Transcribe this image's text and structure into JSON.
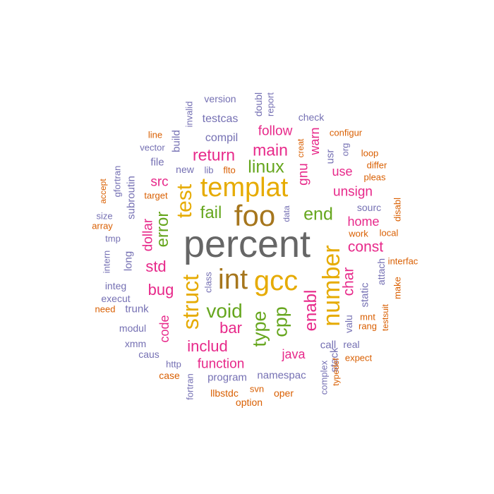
{
  "palette": {
    "gray": "#666666",
    "brown": "#A6761D",
    "gold": "#E6AB02",
    "green": "#66A61E",
    "magenta": "#E7298A",
    "purple": "#7570B3",
    "orange": "#D95F02"
  },
  "words": [
    {
      "text": "percent",
      "weight": 58,
      "color": "gray"
    },
    {
      "text": "foo",
      "weight": 44,
      "color": "brown"
    },
    {
      "text": "int",
      "weight": 42,
      "color": "brown"
    },
    {
      "text": "gcc",
      "weight": 42,
      "color": "gold"
    },
    {
      "text": "templat",
      "weight": 40,
      "color": "gold"
    },
    {
      "text": "number",
      "weight": 36,
      "color": "gold"
    },
    {
      "text": "struct",
      "weight": 34,
      "color": "gold"
    },
    {
      "text": "test",
      "weight": 32,
      "color": "gold"
    },
    {
      "text": "void",
      "weight": 29,
      "color": "green"
    },
    {
      "text": "linux",
      "weight": 26,
      "color": "green"
    },
    {
      "text": "end",
      "weight": 26,
      "color": "green"
    },
    {
      "text": "type",
      "weight": 28,
      "color": "green"
    },
    {
      "text": "cpp",
      "weight": 28,
      "color": "green"
    },
    {
      "text": "fail",
      "weight": 25,
      "color": "green"
    },
    {
      "text": "error",
      "weight": 25,
      "color": "green"
    },
    {
      "text": "main",
      "weight": 24,
      "color": "magenta"
    },
    {
      "text": "return",
      "weight": 24,
      "color": "magenta"
    },
    {
      "text": "includ",
      "weight": 23,
      "color": "magenta"
    },
    {
      "text": "bar",
      "weight": 23,
      "color": "magenta"
    },
    {
      "text": "enabl",
      "weight": 25,
      "color": "magenta"
    },
    {
      "text": "const",
      "weight": 22,
      "color": "magenta"
    },
    {
      "text": "std",
      "weight": 23,
      "color": "magenta"
    },
    {
      "text": "bug",
      "weight": 23,
      "color": "magenta"
    },
    {
      "text": "char",
      "weight": 22,
      "color": "magenta"
    },
    {
      "text": "gnu",
      "weight": 20,
      "color": "magenta"
    },
    {
      "text": "warn",
      "weight": 19,
      "color": "magenta"
    },
    {
      "text": "dollar",
      "weight": 20,
      "color": "magenta"
    },
    {
      "text": "code",
      "weight": 19,
      "color": "magenta"
    },
    {
      "text": "unsign",
      "weight": 20,
      "color": "magenta"
    },
    {
      "text": "src",
      "weight": 20,
      "color": "magenta"
    },
    {
      "text": "follow",
      "weight": 20,
      "color": "magenta"
    },
    {
      "text": "home",
      "weight": 19,
      "color": "magenta"
    },
    {
      "text": "function",
      "weight": 20,
      "color": "magenta"
    },
    {
      "text": "java",
      "weight": 19,
      "color": "magenta"
    },
    {
      "text": "use",
      "weight": 19,
      "color": "magenta"
    },
    {
      "text": "compil",
      "weight": 17,
      "color": "purple"
    },
    {
      "text": "testcas",
      "weight": 17,
      "color": "purple"
    },
    {
      "text": "build",
      "weight": 16,
      "color": "purple"
    },
    {
      "text": "long",
      "weight": 16,
      "color": "purple"
    },
    {
      "text": "usr",
      "weight": 16,
      "color": "purple"
    },
    {
      "text": "sourc",
      "weight": 15,
      "color": "purple"
    },
    {
      "text": "static",
      "weight": 16,
      "color": "purple"
    },
    {
      "text": "file",
      "weight": 16,
      "color": "purple"
    },
    {
      "text": "subroutin",
      "weight": 16,
      "color": "purple"
    },
    {
      "text": "trunk",
      "weight": 16,
      "color": "purple"
    },
    {
      "text": "call",
      "weight": 16,
      "color": "purple"
    },
    {
      "text": "stack",
      "weight": 16,
      "color": "purple"
    },
    {
      "text": "program",
      "weight": 16,
      "color": "purple"
    },
    {
      "text": "namespac",
      "weight": 16,
      "color": "purple"
    },
    {
      "text": "new",
      "weight": 14,
      "color": "purple"
    },
    {
      "text": "gfortran",
      "weight": 14,
      "color": "purple"
    },
    {
      "text": "attach",
      "weight": 14,
      "color": "purple"
    },
    {
      "text": "version",
      "weight": 14,
      "color": "purple"
    },
    {
      "text": "doubl",
      "weight": 14,
      "color": "purple"
    },
    {
      "text": "check",
      "weight": 14,
      "color": "purple"
    },
    {
      "text": "modul",
      "weight": 14,
      "color": "purple"
    },
    {
      "text": "execut",
      "weight": 14,
      "color": "purple"
    },
    {
      "text": "integ",
      "weight": 14,
      "color": "purple"
    },
    {
      "text": "caus",
      "weight": 14,
      "color": "purple"
    },
    {
      "text": "xmm",
      "weight": 14,
      "color": "purple"
    },
    {
      "text": "valu",
      "weight": 14,
      "color": "purple"
    },
    {
      "text": "real",
      "weight": 14,
      "color": "purple"
    },
    {
      "text": "vector",
      "weight": 13,
      "color": "purple"
    },
    {
      "text": "invalid",
      "weight": 13,
      "color": "purple"
    },
    {
      "text": "report",
      "weight": 13,
      "color": "purple"
    },
    {
      "text": "org",
      "weight": 13,
      "color": "purple"
    },
    {
      "text": "lib",
      "weight": 13,
      "color": "purple"
    },
    {
      "text": "size",
      "weight": 13,
      "color": "purple"
    },
    {
      "text": "tmp",
      "weight": 13,
      "color": "purple"
    },
    {
      "text": "intern",
      "weight": 13,
      "color": "purple"
    },
    {
      "text": "class",
      "weight": 13,
      "color": "purple"
    },
    {
      "text": "http",
      "weight": 13,
      "color": "purple"
    },
    {
      "text": "fortran",
      "weight": 13,
      "color": "purple"
    },
    {
      "text": "complex",
      "weight": 13,
      "color": "purple"
    },
    {
      "text": "data",
      "weight": 12,
      "color": "purple"
    },
    {
      "text": "line",
      "weight": 13,
      "color": "orange"
    },
    {
      "text": "configur",
      "weight": 13,
      "color": "orange"
    },
    {
      "text": "loop",
      "weight": 13,
      "color": "orange"
    },
    {
      "text": "differ",
      "weight": 13,
      "color": "orange"
    },
    {
      "text": "pleas",
      "weight": 13,
      "color": "orange"
    },
    {
      "text": "accept",
      "weight": 12,
      "color": "orange"
    },
    {
      "text": "target",
      "weight": 13,
      "color": "orange"
    },
    {
      "text": "flto",
      "weight": 13,
      "color": "orange"
    },
    {
      "text": "creat",
      "weight": 12,
      "color": "orange"
    },
    {
      "text": "array",
      "weight": 13,
      "color": "orange"
    },
    {
      "text": "disabl",
      "weight": 13,
      "color": "orange"
    },
    {
      "text": "work",
      "weight": 13,
      "color": "orange"
    },
    {
      "text": "local",
      "weight": 13,
      "color": "orange"
    },
    {
      "text": "interfac",
      "weight": 13,
      "color": "orange"
    },
    {
      "text": "make",
      "weight": 13,
      "color": "orange"
    },
    {
      "text": "need",
      "weight": 13,
      "color": "orange"
    },
    {
      "text": "mnt",
      "weight": 13,
      "color": "orange"
    },
    {
      "text": "rang",
      "weight": 13,
      "color": "orange"
    },
    {
      "text": "testsuit",
      "weight": 12,
      "color": "orange"
    },
    {
      "text": "expect",
      "weight": 13,
      "color": "orange"
    },
    {
      "text": "typedef",
      "weight": 12,
      "color": "orange"
    },
    {
      "text": "case",
      "weight": 14,
      "color": "orange"
    },
    {
      "text": "llbstdc",
      "weight": 14,
      "color": "orange"
    },
    {
      "text": "svn",
      "weight": 13,
      "color": "orange"
    },
    {
      "text": "oper",
      "weight": 14,
      "color": "orange"
    },
    {
      "text": "option",
      "weight": 14,
      "color": "orange"
    }
  ]
}
